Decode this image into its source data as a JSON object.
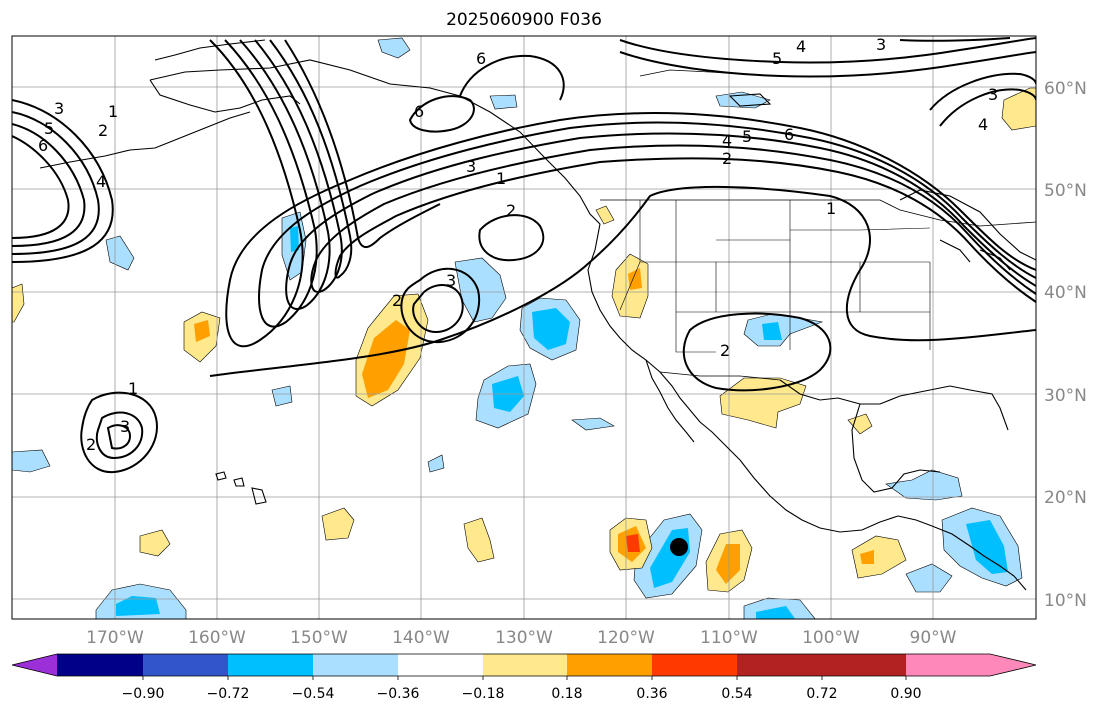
{
  "title": "2025060900 F036",
  "latitude_ticks": [
    "60°N",
    "50°N",
    "40°N",
    "30°N",
    "20°N",
    "10°N"
  ],
  "longitude_ticks": [
    "170°W",
    "160°W",
    "150°W",
    "140°W",
    "130°W",
    "120°W",
    "110°W",
    "100°W",
    "90°W"
  ],
  "colorbar": {
    "tick_labels": [
      "−0.90",
      "−0.72",
      "−0.54",
      "−0.36",
      "−0.18",
      "0.18",
      "0.36",
      "0.54",
      "0.72",
      "0.90"
    ],
    "colors": [
      "#9b30d8",
      "#000088",
      "#3355cc",
      "#00bfff",
      "#aadfff",
      "#ffffff",
      "#ffe98c",
      "#ff9f00",
      "#ff3a00",
      "#b22222",
      "#ff88bb"
    ]
  },
  "contour_labels": [
    "1",
    "2",
    "3",
    "4",
    "5",
    "6"
  ],
  "colors": {
    "coastline": "#000000",
    "grid": "#9a9a9a",
    "contour": "#000000",
    "marker": "#000000"
  },
  "marker": {
    "label": "",
    "lon": -115,
    "lat": 15
  }
}
